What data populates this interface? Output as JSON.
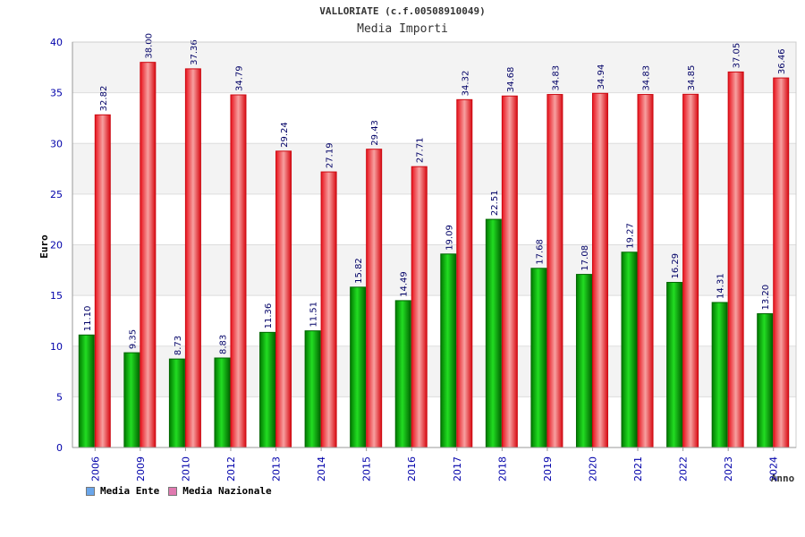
{
  "chart_data": {
    "type": "bar",
    "title": "VALLORIATE (c.f.00508910049)",
    "subtitle": "Media Importi",
    "ylabel": "Euro",
    "xlabel": "Anno",
    "ylim": [
      0,
      40
    ],
    "yticks": [
      0,
      5,
      10,
      15,
      20,
      25,
      30,
      35,
      40
    ],
    "grid": true,
    "legend_position": "bottom-left",
    "categories": [
      "2006",
      "2009",
      "2010",
      "2012",
      "2013",
      "2014",
      "2015",
      "2016",
      "2017",
      "2018",
      "2019",
      "2020",
      "2021",
      "2022",
      "2023",
      "2024"
    ],
    "series": [
      {
        "name": "Media Ente",
        "color": "#00a000",
        "legend_color": "#6aa6ea",
        "values": [
          11.1,
          9.35,
          8.73,
          8.83,
          11.36,
          11.51,
          15.82,
          14.49,
          19.09,
          22.51,
          17.68,
          17.08,
          19.27,
          16.29,
          14.31,
          13.2
        ],
        "labels": [
          "11.10",
          "9.35",
          "8.73",
          "8.83",
          "11.36",
          "11.51",
          "15.82",
          "14.49",
          "19.09",
          "22.51",
          "17.68",
          "17.08",
          "19.27",
          "16.29",
          "14.31",
          "13.20"
        ]
      },
      {
        "name": "Media Nazionale",
        "color": "#ee1c24",
        "legend_color": "#e07ab0",
        "values": [
          32.82,
          38.0,
          37.36,
          34.79,
          29.24,
          27.19,
          29.43,
          27.71,
          34.32,
          34.68,
          34.83,
          34.94,
          34.83,
          34.85,
          37.05,
          36.46
        ],
        "labels": [
          "32.82",
          "38.00",
          "37.36",
          "34.79",
          "29.24",
          "27.19",
          "29.43",
          "27.71",
          "34.32",
          "34.68",
          "34.83",
          "34.94",
          "34.83",
          "34.85",
          "37.05",
          "36.46"
        ]
      }
    ]
  }
}
